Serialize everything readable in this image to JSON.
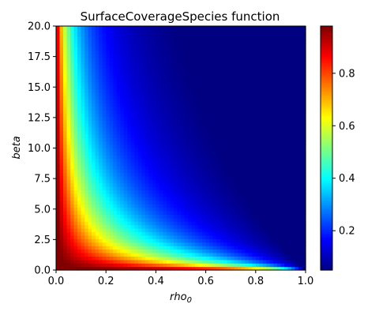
{
  "chart_data": {
    "type": "heatmap",
    "title": "SurfaceCoverageSpecies function",
    "xlabel": "rho",
    "xlabel_subscript": "0",
    "ylabel": "beta",
    "xlim": [
      0.0,
      1.0
    ],
    "ylim": [
      0.0,
      20.0
    ],
    "x_ticks": [
      "0.0",
      "0.2",
      "0.4",
      "0.6",
      "0.8",
      "1.0"
    ],
    "y_ticks": [
      "0.0",
      "2.5",
      "5.0",
      "7.5",
      "10.0",
      "12.5",
      "15.0",
      "17.5",
      "20.0"
    ],
    "colorbar": {
      "colormap": "jet",
      "range": [
        0.05,
        0.98
      ],
      "ticks": [
        "0.2",
        "0.4",
        "0.6",
        "0.8"
      ]
    },
    "grid": {
      "nx": 70,
      "ny": 70,
      "function": "coverage = 1 / (1 + beta * rho0 / (1 - rho0))"
    }
  }
}
